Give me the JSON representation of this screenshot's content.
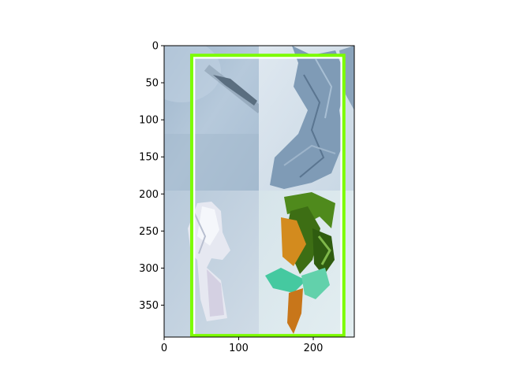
{
  "figure": {
    "x_axis": {
      "range": [
        0,
        255
      ],
      "ticks": [
        0,
        100,
        200
      ]
    },
    "y_axis": {
      "range": [
        393,
        0
      ],
      "ticks": [
        0,
        50,
        100,
        150,
        200,
        250,
        300,
        350
      ]
    },
    "image_grid": {
      "rows": 2,
      "cols": 2,
      "tile_size": [
        128,
        196
      ],
      "tiles": [
        {
          "subject": "blurred blue-gray surface with a dark diagonal streak",
          "color": "#a9bfd3"
        },
        {
          "subject": "crumpled blue paper on pale background",
          "color": "#8fa9c2"
        },
        {
          "subject": "crumpled white/lavender paper on pale blue background",
          "color": "#c6d4e1"
        },
        {
          "subject": "torn green, orange and teal paper pieces on pale background",
          "color": "#d5e3ea"
        }
      ]
    },
    "boxes": [
      {
        "name": "white-box",
        "x": [
          40,
          238
        ],
        "y": [
          16,
          393
        ],
        "color": "#ffffff"
      },
      {
        "name": "green-box",
        "x": [
          37,
          241
        ],
        "y": [
          13,
          391
        ],
        "color": "#7cfc00"
      }
    ]
  }
}
